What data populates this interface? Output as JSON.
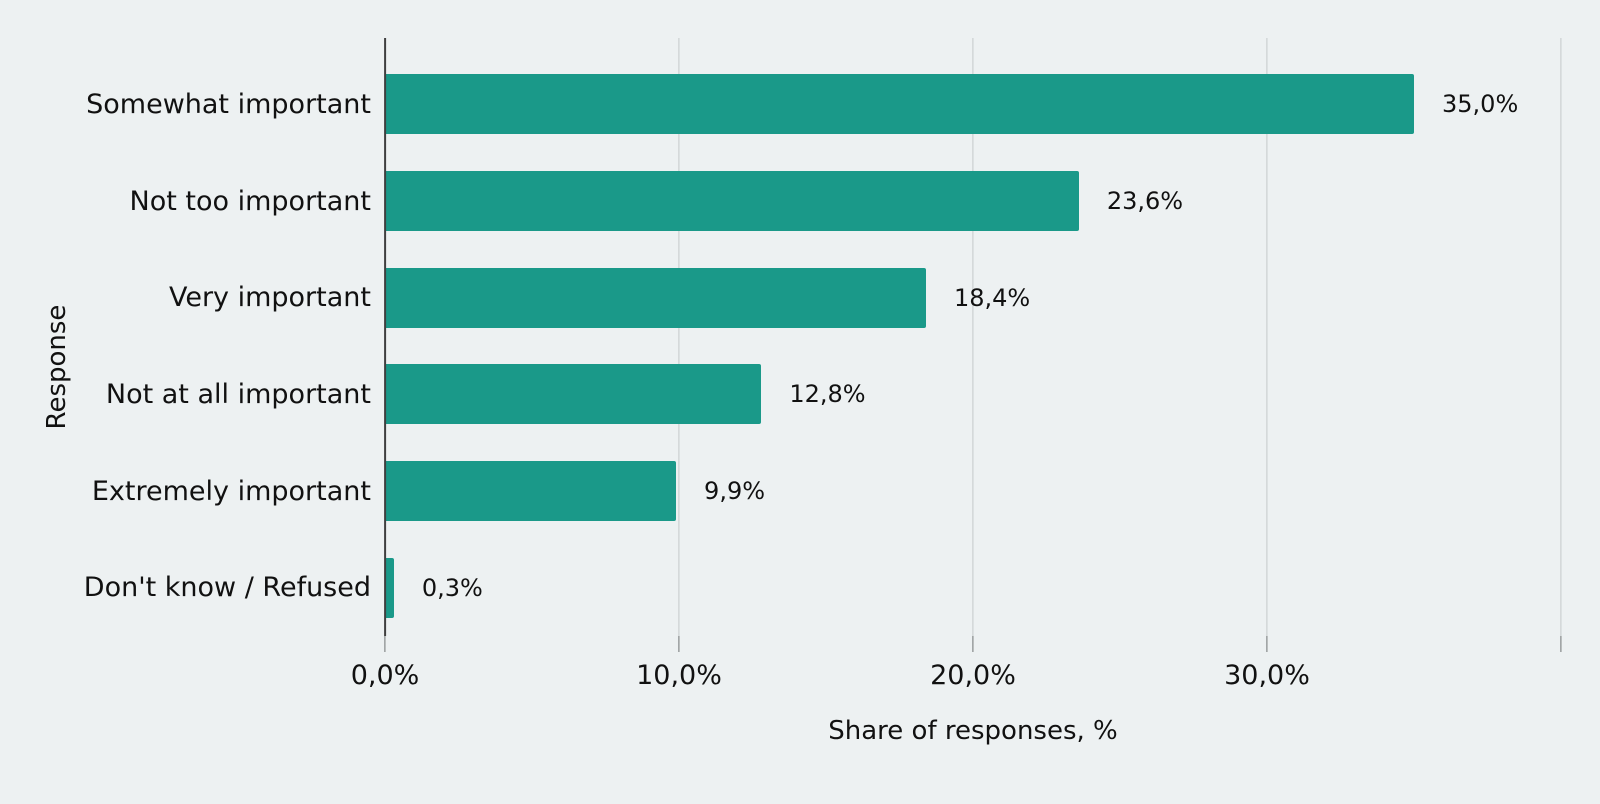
{
  "chart_data": {
    "type": "bar",
    "orientation": "horizontal",
    "title": "",
    "xlabel": "Share of responses, %",
    "ylabel": "Response",
    "categories": [
      "Somewhat important",
      "Not too important",
      "Very important",
      "Not at all important",
      "Extremely important",
      "Don't know / Refused"
    ],
    "values": [
      35.0,
      23.6,
      18.4,
      12.8,
      9.9,
      0.3
    ],
    "value_labels": [
      "35,0%",
      "23,6%",
      "18,4%",
      "12,8%",
      "9,9%",
      "0,3%"
    ],
    "xlim": [
      0,
      40
    ],
    "x_ticks": [
      {
        "value": 0,
        "label": "0,0%"
      },
      {
        "value": 10,
        "label": "10,0%"
      },
      {
        "value": 20,
        "label": "20,0%"
      },
      {
        "value": 30,
        "label": "30,0%"
      },
      {
        "value": 40,
        "label": ""
      }
    ],
    "grid": "vertical-gridlines-on",
    "legend": "none",
    "colors": {
      "background": "#edf1f2",
      "bar": "#1a9989",
      "gridline": "#c5c9ca",
      "axis_line": "#3f3f3f",
      "tick_mark": "#6f7374",
      "text": "#111111"
    }
  }
}
